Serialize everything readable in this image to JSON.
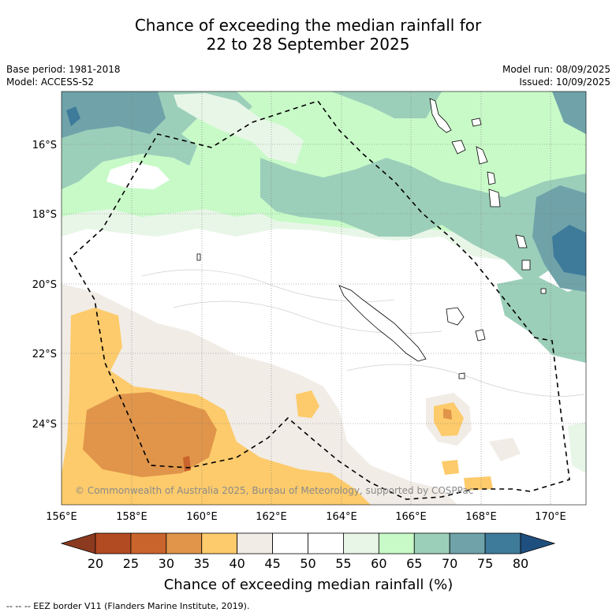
{
  "title_line1": "Chance of exceeding the median rainfall for",
  "title_line2": "22 to 28 September 2025",
  "base_period": "Base period: 1981-2018",
  "model": "Model: ACCESS-S2",
  "model_run": "Model run: 08/09/2025",
  "issued": "Issued: 10/09/2025",
  "copyright": "© Commonwealth of Australia 2025, Bureau of Meteorology, supported by COSPPac",
  "lon_ticks": [
    "156°E",
    "158°E",
    "160°E",
    "162°E",
    "164°E",
    "166°E",
    "168°E",
    "170°E"
  ],
  "lat_ticks": [
    "16°S",
    "18°S",
    "20°S",
    "22°S",
    "24°S"
  ],
  "colorbar": {
    "label": "Chance of exceeding median rainfall (%)",
    "ticks": [
      "20",
      "25",
      "30",
      "35",
      "40",
      "45",
      "50",
      "55",
      "60",
      "65",
      "70",
      "75",
      "80"
    ],
    "colors": [
      "#8b3a1f",
      "#b24a22",
      "#c9642c",
      "#e0954a",
      "#fdcb6b",
      "#f1ece6",
      "#ffffff",
      "#ffffff",
      "#e8f6e8",
      "#c8fac8",
      "#9ccfba",
      "#6fa3a9",
      "#3e7a9a",
      "#1f4f7e"
    ]
  },
  "legend_footer": "--  --  -- EEZ border V11 (Flanders Marine Institute, 2019)."
}
